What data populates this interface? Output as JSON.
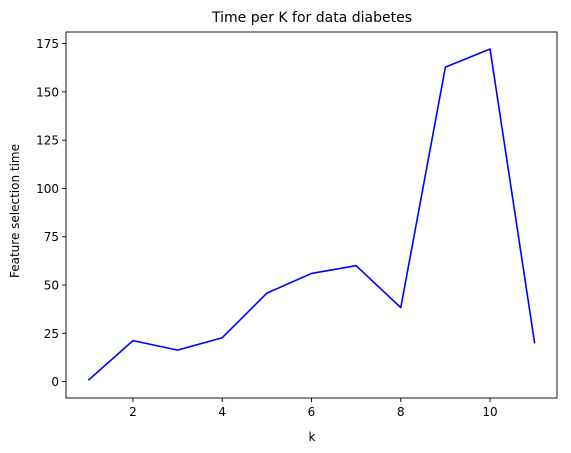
{
  "chart_data": {
    "type": "line",
    "title": "Time per K for data diabetes",
    "xlabel": "k",
    "ylabel": "Feature selection time",
    "xlim": [
      0.5,
      11.5
    ],
    "ylim": [
      -8.5,
      181
    ],
    "xticks": [
      2,
      4,
      6,
      8,
      10
    ],
    "yticks": [
      0,
      25,
      50,
      75,
      100,
      125,
      150,
      175
    ],
    "grid": false,
    "series": [
      {
        "color": "#0000ff",
        "x": [
          1,
          2,
          3,
          4,
          5,
          6,
          7,
          8,
          9,
          10,
          11
        ],
        "y": [
          0.7,
          21.2,
          16.3,
          22.7,
          45.8,
          56.0,
          60.0,
          38.3,
          162.8,
          172.2,
          19.8
        ]
      }
    ]
  }
}
